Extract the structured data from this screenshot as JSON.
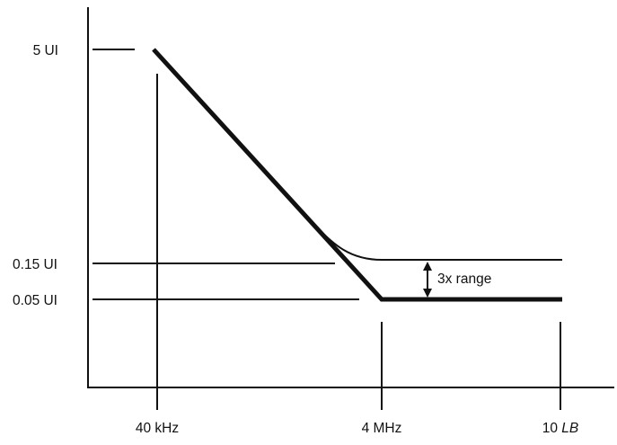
{
  "chart_data": {
    "type": "line",
    "title": "",
    "xlabel": "",
    "ylabel": "",
    "x_tick_labels": {
      "first": "40 kHz",
      "second": "4 MHz",
      "third_value": "10",
      "third_unit_italic": "LB"
    },
    "y_tick_labels": [
      "5 UI",
      "0.15 UI",
      "0.05 UI"
    ],
    "series": [
      {
        "style": "thick",
        "points": [
          {
            "x": "40 kHz",
            "y": "5 UI"
          },
          {
            "x": "4 MHz",
            "y": "0.05 UI"
          },
          {
            "x": "10 LB",
            "y": "0.05 UI"
          }
        ]
      },
      {
        "style": "thin",
        "points": [
          {
            "x": "40 kHz",
            "y": "5 UI"
          },
          {
            "x": "4 MHz",
            "y": "0.15 UI"
          },
          {
            "x": "10 LB",
            "y": "0.15 UI"
          }
        ]
      }
    ],
    "annotations": [
      {
        "text": "3x range",
        "between": [
          "0.15 UI",
          "0.05 UI"
        ]
      }
    ],
    "grid": false,
    "legend": "none"
  },
  "colors": {
    "ink": "#111111",
    "background": "#ffffff"
  }
}
